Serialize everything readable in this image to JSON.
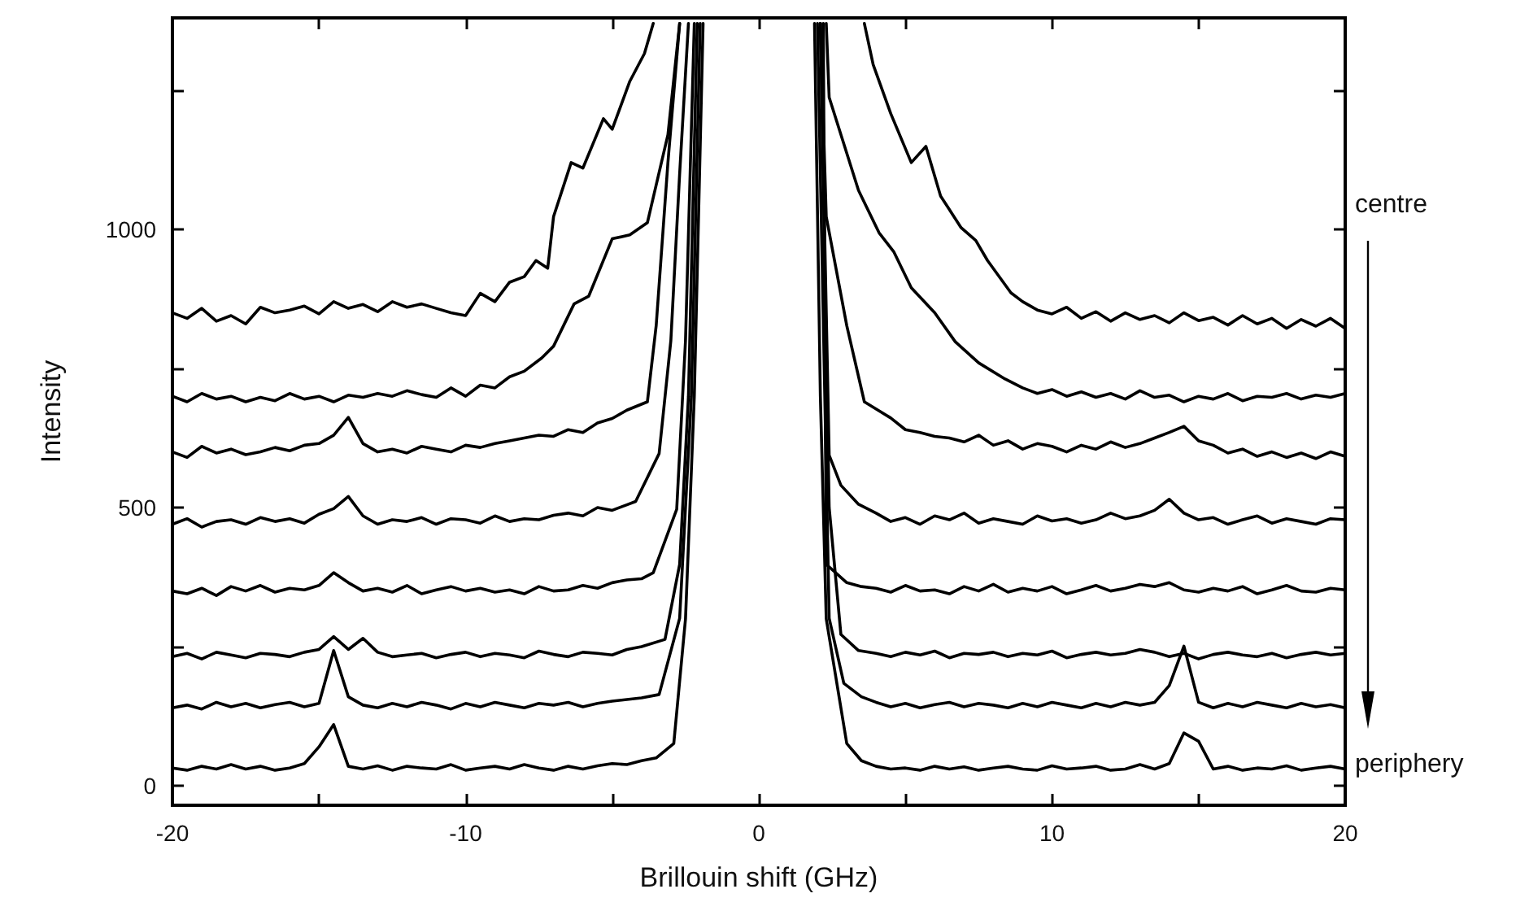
{
  "chart_data": {
    "type": "line",
    "xlabel": "Brillouin shift (GHz)",
    "ylabel": "Intensity",
    "xlim": [
      -20,
      20
    ],
    "ylim": [
      -35,
      1380
    ],
    "xticks": [
      -20,
      {
        "value": -15,
        "label": null
      },
      -10,
      {
        "value": -5,
        "label": null
      },
      0,
      {
        "value": 5,
        "label": null
      },
      10,
      {
        "value": 15,
        "label": null
      },
      20
    ],
    "yticks": [
      0,
      {
        "value": 250,
        "label": null
      },
      500,
      {
        "value": 750,
        "label": null
      },
      1000,
      {
        "value": 1250,
        "label": null
      }
    ],
    "grid": false,
    "marker": "none",
    "annotations": [
      "centre",
      "periphery"
    ],
    "series": [
      {
        "color": "#000000",
        "x": [
          -20,
          -19.5,
          -19,
          -18.5,
          -18,
          -17.5,
          -17,
          -16.5,
          -16,
          -15.5,
          -15,
          -14.5,
          -14,
          -13.5,
          -13,
          -12.5,
          -12,
          -11.5,
          -11,
          -10.5,
          -10,
          -9.5,
          -9,
          -8.5,
          -8,
          -7.6,
          -7.2,
          -7,
          -6.4,
          -6,
          -5.3,
          -5,
          -4.4,
          -3.9,
          -3.6,
          0,
          3.6,
          3.9,
          4.5,
          5.2,
          5.7,
          6.2,
          6.9,
          7.4,
          7.8,
          8.6,
          9,
          9.5,
          10,
          10.5,
          11,
          11.5,
          12,
          12.5,
          13,
          13.5,
          14,
          14.5,
          15,
          15.5,
          16,
          16.5,
          17,
          17.5,
          18,
          18.5,
          19,
          19.5,
          20
        ],
        "values": [
          850,
          840,
          858,
          835,
          845,
          830,
          860,
          850,
          855,
          862,
          848,
          870,
          858,
          865,
          852,
          870,
          860,
          866,
          858,
          850,
          845,
          885,
          870,
          905,
          915,
          944,
          930,
          1023,
          1120,
          1110,
          1199,
          1180,
          1266,
          1316,
          1370,
          null,
          1370,
          1296,
          1208,
          1120,
          1149,
          1060,
          1003,
          980,
          944,
          886,
          870,
          855,
          848,
          860,
          840,
          852,
          835,
          850,
          838,
          845,
          832,
          850,
          836,
          842,
          828,
          845,
          830,
          840,
          822,
          838,
          826,
          840,
          822
        ]
      },
      {
        "color": "#000000",
        "x": [
          -20,
          -19.5,
          -19,
          -18.5,
          -18,
          -17.5,
          -17,
          -16.5,
          -16,
          -15.5,
          -15,
          -14.5,
          -14,
          -13.5,
          -13,
          -12.5,
          -12,
          -11.5,
          -11,
          -10.5,
          -10,
          -9.5,
          -9,
          -8.5,
          -8,
          -7.4,
          -7,
          -6.3,
          -5.8,
          -5,
          -4.4,
          -3.8,
          -3.1,
          -2.7,
          0,
          2.3,
          2.4,
          3.4,
          4.1,
          4.6,
          5.2,
          6,
          6.7,
          7.5,
          8.4,
          9,
          9.5,
          10,
          10.5,
          11,
          11.5,
          12,
          12.5,
          13,
          13.5,
          14,
          14.5,
          15,
          15.5,
          16,
          16.5,
          17,
          17.5,
          18,
          18.5,
          19,
          19.5,
          20
        ],
        "values": [
          700,
          690,
          705,
          695,
          700,
          690,
          698,
          692,
          705,
          695,
          700,
          690,
          702,
          698,
          705,
          700,
          710,
          703,
          698,
          715,
          700,
          720,
          715,
          735,
          745,
          769,
          790,
          866,
          880,
          983,
          990,
          1012,
          1170,
          1370,
          null,
          1370,
          1237,
          1070,
          994,
          960,
          895,
          850,
          798,
          760,
          731,
          715,
          705,
          712,
          700,
          708,
          698,
          705,
          695,
          710,
          698,
          702,
          690,
          700,
          695,
          705,
          692,
          700,
          698,
          705,
          695,
          702,
          698,
          705
        ]
      },
      {
        "color": "#000000",
        "x": [
          -20,
          -19.5,
          -19,
          -18.5,
          -18,
          -17.5,
          -17,
          -16.5,
          -16,
          -15.5,
          -15,
          -14.5,
          -14,
          -13.5,
          -13,
          -12.5,
          -12,
          -11.5,
          -11,
          -10.5,
          -10,
          -9.5,
          -9,
          -8.5,
          -8,
          -7.5,
          -7,
          -6.5,
          -6,
          -5.5,
          -5,
          -4.5,
          -3.8,
          -3.5,
          -3.1,
          -2.7,
          0,
          2.1,
          2.3,
          3,
          3.6,
          4.5,
          5,
          5.5,
          6,
          6.5,
          7,
          7.5,
          8,
          8.5,
          9,
          9.5,
          10,
          10.5,
          11,
          11.5,
          12,
          12.5,
          13,
          13.5,
          14,
          14.5,
          15,
          15.5,
          16,
          16.5,
          17,
          17.5,
          18,
          18.5,
          19,
          19.5,
          20
        ],
        "values": [
          600,
          590,
          610,
          598,
          605,
          595,
          600,
          608,
          602,
          612,
          615,
          630,
          662,
          615,
          600,
          605,
          598,
          610,
          605,
          600,
          612,
          608,
          615,
          620,
          625,
          630,
          628,
          640,
          635,
          652,
          660,
          675,
          690,
          827,
          1120,
          1370,
          null,
          1370,
          1023,
          827,
          690,
          661,
          640,
          635,
          628,
          625,
          618,
          630,
          612,
          620,
          605,
          615,
          610,
          600,
          612,
          605,
          618,
          608,
          615,
          625,
          635,
          646,
          620,
          612,
          598,
          605,
          592,
          600,
          590,
          598,
          588,
          600,
          592
        ]
      },
      {
        "color": "#000000",
        "x": [
          -20,
          -19.5,
          -19,
          -18.5,
          -18,
          -17.5,
          -17,
          -16.5,
          -16,
          -15.5,
          -15,
          -14.5,
          -14,
          -13.5,
          -13,
          -12.5,
          -12,
          -11.5,
          -11,
          -10.5,
          -10,
          -9.5,
          -9,
          -8.5,
          -8,
          -7.5,
          -7,
          -6.5,
          -6,
          -5.5,
          -5,
          -4.5,
          -4.2,
          -3.4,
          -3,
          -2.7,
          -2.4,
          0,
          2.1,
          2.4,
          2.8,
          3.4,
          4,
          4.5,
          5,
          5.5,
          6,
          6.5,
          7,
          7.5,
          8,
          8.5,
          9,
          9.5,
          10,
          10.5,
          11,
          11.5,
          12,
          12.5,
          13,
          13.5,
          14,
          14.5,
          15,
          15.5,
          16,
          16.5,
          17,
          17.5,
          18,
          18.5,
          19,
          19.5,
          20
        ],
        "values": [
          470,
          480,
          465,
          475,
          478,
          470,
          482,
          475,
          480,
          472,
          488,
          498,
          520,
          485,
          470,
          478,
          475,
          482,
          470,
          480,
          478,
          472,
          485,
          475,
          480,
          478,
          486,
          490,
          485,
          500,
          495,
          505,
          511,
          597,
          800,
          1100,
          1370,
          null,
          1370,
          594,
          540,
          506,
          490,
          475,
          482,
          470,
          485,
          478,
          490,
          472,
          480,
          475,
          470,
          485,
          476,
          480,
          472,
          478,
          490,
          480,
          485,
          495,
          515,
          490,
          478,
          482,
          470,
          478,
          485,
          472,
          480,
          475,
          470,
          480,
          478
        ]
      },
      {
        "color": "#000000",
        "x": [
          -20,
          -19.5,
          -19,
          -18.5,
          -18,
          -17.5,
          -17,
          -16.5,
          -16,
          -15.5,
          -15,
          -14.5,
          -14,
          -13.5,
          -13,
          -12.5,
          -12,
          -11.5,
          -11,
          -10.5,
          -10,
          -9.5,
          -9,
          -8.5,
          -8,
          -7.5,
          -7,
          -6.5,
          -6,
          -5.5,
          -5,
          -4.5,
          -4,
          -3.6,
          -2.8,
          -2.5,
          -2.2,
          0,
          2.2,
          2.3,
          3,
          3.5,
          4,
          4.5,
          5,
          5.5,
          6,
          6.5,
          7,
          7.5,
          8,
          8.5,
          9,
          9.5,
          10,
          10.5,
          11,
          11.5,
          12,
          12.5,
          13,
          13.5,
          14,
          14.5,
          15,
          15.5,
          16,
          16.5,
          17,
          17.5,
          18,
          18.5,
          19,
          19.5,
          20
        ],
        "values": [
          350,
          345,
          355,
          342,
          358,
          350,
          360,
          348,
          355,
          352,
          360,
          383,
          365,
          350,
          355,
          348,
          360,
          345,
          352,
          358,
          350,
          355,
          348,
          352,
          345,
          358,
          350,
          352,
          360,
          355,
          365,
          370,
          372,
          383,
          497,
          800,
          1370,
          null,
          1370,
          398,
          365,
          358,
          355,
          348,
          360,
          350,
          352,
          345,
          358,
          350,
          362,
          348,
          355,
          350,
          358,
          345,
          352,
          360,
          350,
          355,
          362,
          358,
          365,
          352,
          348,
          355,
          350,
          358,
          345,
          352,
          360,
          350,
          348,
          355,
          352
        ]
      },
      {
        "color": "#000000",
        "x": [
          -20,
          -19.5,
          -19,
          -18.5,
          -18,
          -17.5,
          -17,
          -16.5,
          -16,
          -15.5,
          -15,
          -14.5,
          -14,
          -13.5,
          -13,
          -12.5,
          -12,
          -11.5,
          -11,
          -10.5,
          -10,
          -9.5,
          -9,
          -8.5,
          -8,
          -7.5,
          -7,
          -6.5,
          -6,
          -5.5,
          -5,
          -4.5,
          -4,
          -3.2,
          -2.7,
          -2.4,
          -2.1,
          0,
          2.1,
          2.4,
          2.8,
          3.4,
          4,
          4.5,
          5,
          5.5,
          6,
          6.5,
          7,
          7.5,
          8,
          8.5,
          9,
          9.5,
          10,
          10.5,
          11,
          11.5,
          12,
          12.5,
          13,
          13.5,
          14,
          14.5,
          15,
          15.5,
          16,
          16.5,
          17,
          17.5,
          18,
          18.5,
          19,
          19.5,
          20
        ],
        "values": [
          232,
          238,
          228,
          240,
          235,
          230,
          238,
          236,
          232,
          240,
          245,
          268,
          245,
          265,
          240,
          232,
          235,
          238,
          230,
          236,
          240,
          232,
          238,
          235,
          230,
          242,
          236,
          232,
          240,
          238,
          235,
          245,
          250,
          263,
          398,
          700,
          1370,
          null,
          1370,
          500,
          272,
          243,
          238,
          232,
          240,
          235,
          242,
          230,
          238,
          236,
          240,
          232,
          238,
          235,
          242,
          230,
          236,
          240,
          235,
          238,
          245,
          240,
          232,
          238,
          228,
          236,
          240,
          235,
          232,
          238,
          230,
          236,
          240,
          235,
          238
        ]
      },
      {
        "color": "#000000",
        "x": [
          -20,
          -19.5,
          -19,
          -18.5,
          -18,
          -17.5,
          -17,
          -16.5,
          -16,
          -15.5,
          -15,
          -14.5,
          -14,
          -13.5,
          -13,
          -12.5,
          -12,
          -11.5,
          -11,
          -10.5,
          -10,
          -9.5,
          -9,
          -8.5,
          -8,
          -7.5,
          -7,
          -6.5,
          -6,
          -5.5,
          -5,
          -4.5,
          -4,
          -3.4,
          -2.7,
          -2.3,
          -2,
          0,
          2,
          2.4,
          2.9,
          3.5,
          4,
          4.5,
          5,
          5.5,
          6,
          6.5,
          7,
          7.5,
          8,
          8.5,
          9,
          9.5,
          10,
          10.5,
          11,
          11.5,
          12,
          12.5,
          13,
          13.5,
          14,
          14.5,
          15,
          15.5,
          16,
          16.5,
          17,
          17.5,
          18,
          18.5,
          19,
          19.5,
          20
        ],
        "values": [
          140,
          145,
          138,
          150,
          142,
          148,
          140,
          146,
          150,
          142,
          148,
          243,
          160,
          145,
          140,
          148,
          142,
          150,
          145,
          138,
          148,
          142,
          150,
          145,
          140,
          148,
          145,
          150,
          142,
          148,
          152,
          155,
          158,
          164,
          301,
          700,
          1370,
          null,
          1370,
          301,
          184,
          160,
          150,
          142,
          148,
          140,
          146,
          150,
          142,
          148,
          145,
          140,
          148,
          142,
          150,
          145,
          140,
          148,
          142,
          150,
          145,
          150,
          180,
          251,
          150,
          140,
          148,
          142,
          150,
          145,
          140,
          148,
          142,
          146,
          140
        ]
      },
      {
        "color": "#000000",
        "x": [
          -20,
          -19.5,
          -19,
          -18.5,
          -18,
          -17.5,
          -17,
          -16.5,
          -16,
          -15.5,
          -15,
          -14.5,
          -14,
          -13.5,
          -13,
          -12.5,
          -12,
          -11.5,
          -11,
          -10.5,
          -10,
          -9.5,
          -9,
          -8.5,
          -8,
          -7.5,
          -7,
          -6.5,
          -6,
          -5.5,
          -5,
          -4.5,
          -4,
          -3.5,
          -2.9,
          -2.5,
          -2.2,
          -1.9,
          0,
          1.9,
          2.1,
          2.3,
          3,
          3.5,
          4,
          4.5,
          5,
          5.5,
          6,
          6.5,
          7,
          7.5,
          8,
          8.5,
          9,
          9.5,
          10,
          10.5,
          11,
          11.5,
          12,
          12.5,
          13,
          13.5,
          14,
          14.5,
          15,
          15.5,
          16,
          16.5,
          17,
          17.5,
          18,
          18.5,
          19,
          19.5,
          20
        ],
        "values": [
          32,
          28,
          35,
          30,
          38,
          30,
          35,
          28,
          32,
          40,
          70,
          110,
          35,
          30,
          36,
          28,
          35,
          32,
          30,
          38,
          28,
          32,
          35,
          30,
          38,
          32,
          28,
          35,
          30,
          36,
          40,
          38,
          45,
          50,
          76,
          300,
          700,
          1370,
          null,
          1370,
          700,
          300,
          76,
          45,
          35,
          30,
          32,
          28,
          35,
          30,
          34,
          28,
          32,
          35,
          30,
          28,
          36,
          30,
          32,
          35,
          28,
          30,
          38,
          30,
          40,
          95,
          80,
          30,
          35,
          28,
          32,
          30,
          36,
          28,
          32,
          35,
          30
        ]
      }
    ]
  }
}
